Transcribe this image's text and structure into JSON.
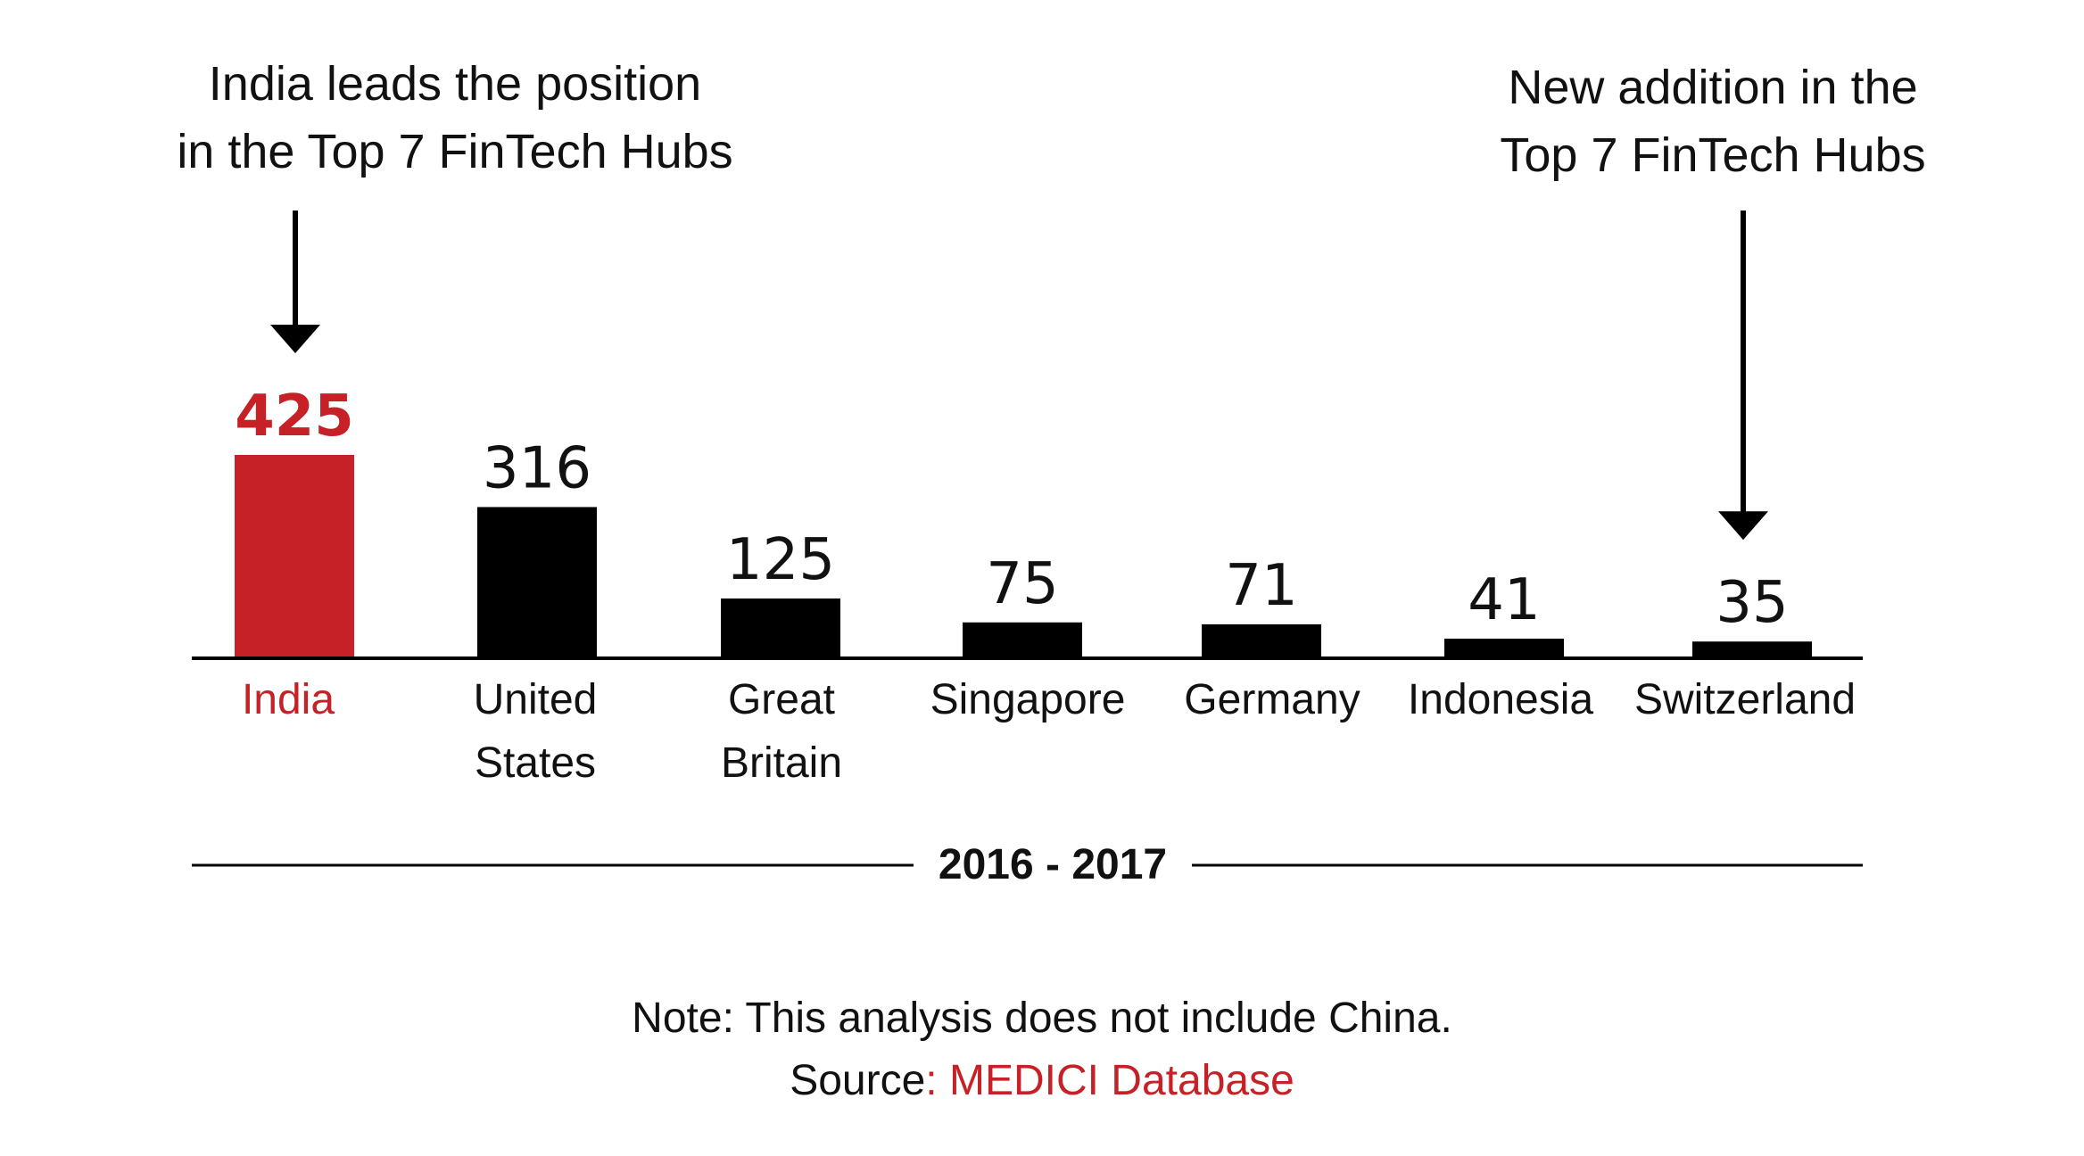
{
  "annotations": {
    "left": {
      "line1": "India leads the position",
      "line2": "in the Top 7 FinTech Hubs"
    },
    "right": {
      "line1": "New addition in the",
      "line2": "Top 7 FinTech Hubs"
    }
  },
  "period_label": "2016 - 2017",
  "footer": {
    "note": "Note: This analysis does not include China.",
    "source_prefix": "Source",
    "source_name": ": MEDICI Database"
  },
  "colors": {
    "highlight": "#c62127",
    "bar": "#000000",
    "text": "#111111"
  },
  "chart_data": {
    "type": "bar",
    "categories": [
      [
        "India"
      ],
      [
        "United",
        "States"
      ],
      [
        "Great",
        "Britain"
      ],
      [
        "Singapore"
      ],
      [
        "Germany"
      ],
      [
        "Indonesia"
      ],
      [
        "Switzerland"
      ]
    ],
    "values": [
      425,
      316,
      125,
      75,
      71,
      41,
      35
    ],
    "highlight_index": 0,
    "arrows_point_to": [
      0,
      6
    ],
    "data_labels": true,
    "grid": false,
    "ylim": [
      0,
      425
    ]
  }
}
